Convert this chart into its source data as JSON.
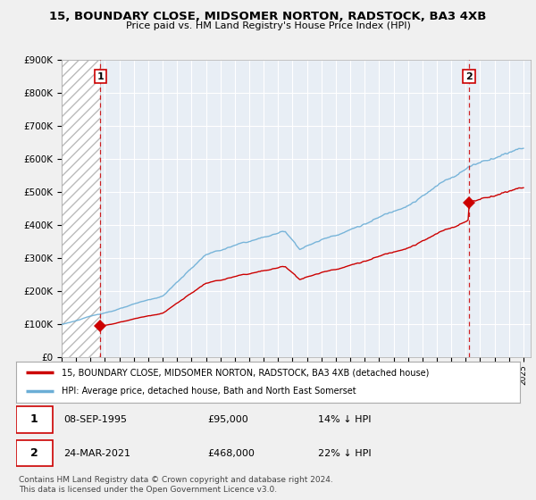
{
  "title": "15, BOUNDARY CLOSE, MIDSOMER NORTON, RADSTOCK, BA3 4XB",
  "subtitle": "Price paid vs. HM Land Registry's House Price Index (HPI)",
  "ylim": [
    0,
    900000
  ],
  "yticks": [
    0,
    100000,
    200000,
    300000,
    400000,
    500000,
    600000,
    700000,
    800000,
    900000
  ],
  "ytick_labels": [
    "£0",
    "£100K",
    "£200K",
    "£300K",
    "£400K",
    "£500K",
    "£600K",
    "£700K",
    "£800K",
    "£900K"
  ],
  "xlim_start": 1993.0,
  "xlim_end": 2025.5,
  "hpi_color": "#6baed6",
  "price_color": "#cc0000",
  "dashed_line_color": "#cc0000",
  "point1_year": 1995.69,
  "point1_value": 95000,
  "point2_year": 2021.23,
  "point2_value": 468000,
  "legend_property": "15, BOUNDARY CLOSE, MIDSOMER NORTON, RADSTOCK, BA3 4XB (detached house)",
  "legend_hpi": "HPI: Average price, detached house, Bath and North East Somerset",
  "annot1_label": "1",
  "annot1_date": "08-SEP-1995",
  "annot1_price": "£95,000",
  "annot1_hpi": "14% ↓ HPI",
  "annot2_label": "2",
  "annot2_date": "24-MAR-2021",
  "annot2_price": "£468,000",
  "annot2_hpi": "22% ↓ HPI",
  "footer": "Contains HM Land Registry data © Crown copyright and database right 2024.\nThis data is licensed under the Open Government Licence v3.0.",
  "background_color": "#f0f0f0",
  "plot_background": "#e8eef5"
}
